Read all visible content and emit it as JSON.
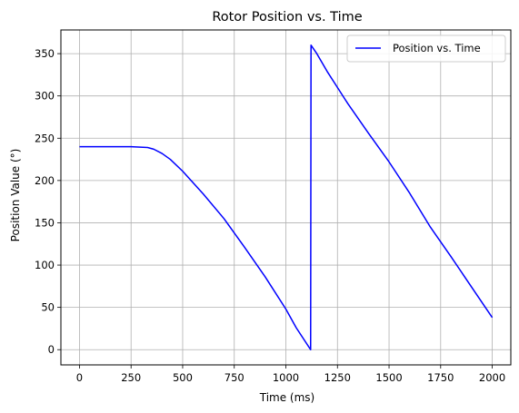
{
  "chart_data": {
    "type": "line",
    "title": "Rotor Position vs. Time",
    "xlabel": "Time (ms)",
    "ylabel": "Position Value (°)",
    "xlim": [
      -90,
      2090
    ],
    "ylim": [
      -18,
      378
    ],
    "xticks": [
      0,
      250,
      500,
      750,
      1000,
      1250,
      1500,
      1750,
      2000
    ],
    "yticks": [
      0,
      50,
      100,
      150,
      200,
      250,
      300,
      350
    ],
    "grid": true,
    "legend": "upper-right",
    "series": [
      {
        "name": "Position vs. Time",
        "color": "#0000ff",
        "points": [
          [
            0,
            240
          ],
          [
            250,
            240
          ],
          [
            330,
            239
          ],
          [
            360,
            237
          ],
          [
            400,
            232
          ],
          [
            440,
            225
          ],
          [
            500,
            211
          ],
          [
            600,
            184
          ],
          [
            700,
            155
          ],
          [
            800,
            121
          ],
          [
            900,
            86
          ],
          [
            1000,
            48
          ],
          [
            1050,
            26
          ],
          [
            1120,
            0
          ],
          [
            1122,
            360
          ],
          [
            1150,
            350
          ],
          [
            1200,
            329
          ],
          [
            1250,
            310
          ],
          [
            1300,
            291
          ],
          [
            1400,
            256
          ],
          [
            1500,
            222
          ],
          [
            1600,
            185
          ],
          [
            1700,
            145
          ],
          [
            1800,
            110
          ],
          [
            1900,
            74
          ],
          [
            2000,
            38
          ]
        ]
      }
    ]
  }
}
